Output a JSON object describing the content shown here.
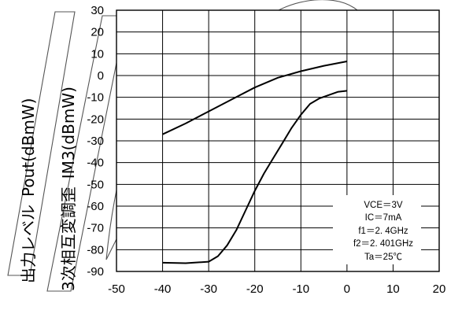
{
  "chart_data": {
    "type": "line",
    "title": "",
    "xlabel": "",
    "ylabel_output": "出力レベル",
    "ylabel_output_unit": "Pout(dBmW)",
    "ylabel_im3": "3次相互変調歪",
    "ylabel_im3_unit": "IM3(dBmW)",
    "xlim": [
      -50,
      20
    ],
    "ylim": [
      -90,
      30
    ],
    "grid": true,
    "x_ticks": [
      "-50",
      "-40",
      "-30",
      "-20",
      "-10",
      "0",
      "10",
      "20"
    ],
    "y_ticks": [
      "30",
      "20",
      "10",
      "0",
      "-10",
      "-20",
      "-30",
      "-40",
      "-50",
      "-60",
      "-70",
      "-80",
      "-90"
    ],
    "series": [
      {
        "x": [
          -40,
          -35,
          -30,
          -25,
          -20,
          -15,
          -10,
          -5,
          0
        ],
        "y": [
          -27,
          -22,
          -16.5,
          -11,
          -5.5,
          -1,
          2,
          4.5,
          6.5
        ]
      },
      {
        "x": [
          -40,
          -35,
          -30,
          -28,
          -26,
          -24,
          -22,
          -20,
          -18,
          -16,
          -14,
          -12,
          -10,
          -8,
          -6,
          -4,
          -2,
          0
        ],
        "y": [
          -86,
          -86.2,
          -85.5,
          -83,
          -78,
          -71,
          -62,
          -53,
          -45,
          -38,
          -31,
          -24,
          -18,
          -13,
          -10.5,
          -9,
          -7.5,
          -7
        ]
      }
    ],
    "conditions": [
      "VCE＝3V",
      "IC＝7mA",
      "f1＝2. 4GHz",
      "f2＝2. 401GHz",
      "Ta＝25℃"
    ]
  }
}
